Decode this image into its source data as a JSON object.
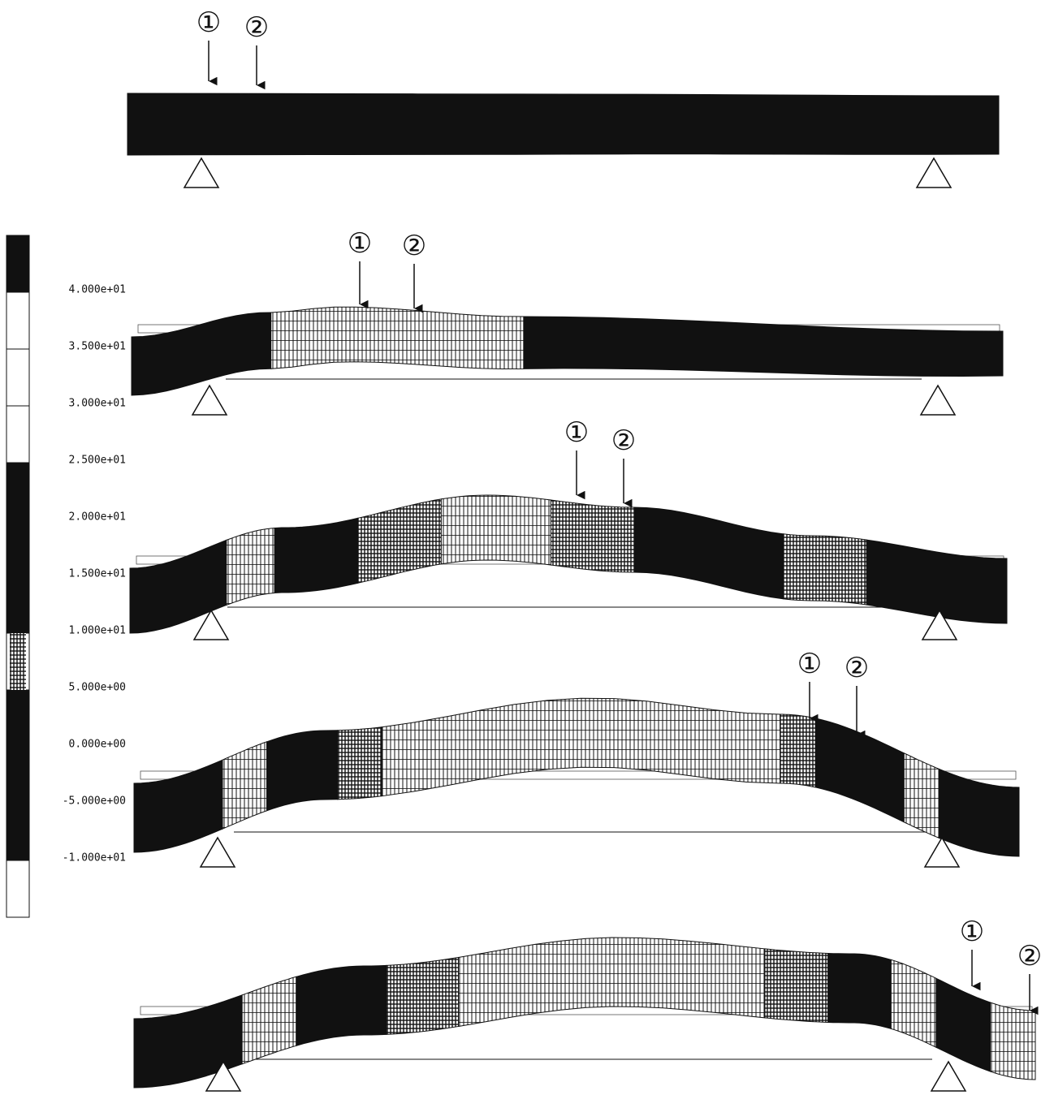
{
  "legend": {
    "labels": [
      "4.000e+01",
      "3.500e+01",
      "3.000e+01",
      "2.500e+01",
      "2.000e+01",
      "1.500e+01",
      "1.000e+01",
      "5.000e+00",
      "0.000e+00",
      "-5.000e+00",
      "-1.000e+01"
    ]
  },
  "panels": [
    {
      "markers": [
        "①",
        "②"
      ]
    },
    {
      "markers": [
        "①",
        "②"
      ]
    },
    {
      "markers": [
        "①",
        "②"
      ]
    },
    {
      "markers": [
        "①",
        "②"
      ]
    },
    {
      "markers": [
        "①",
        "②"
      ]
    }
  ]
}
